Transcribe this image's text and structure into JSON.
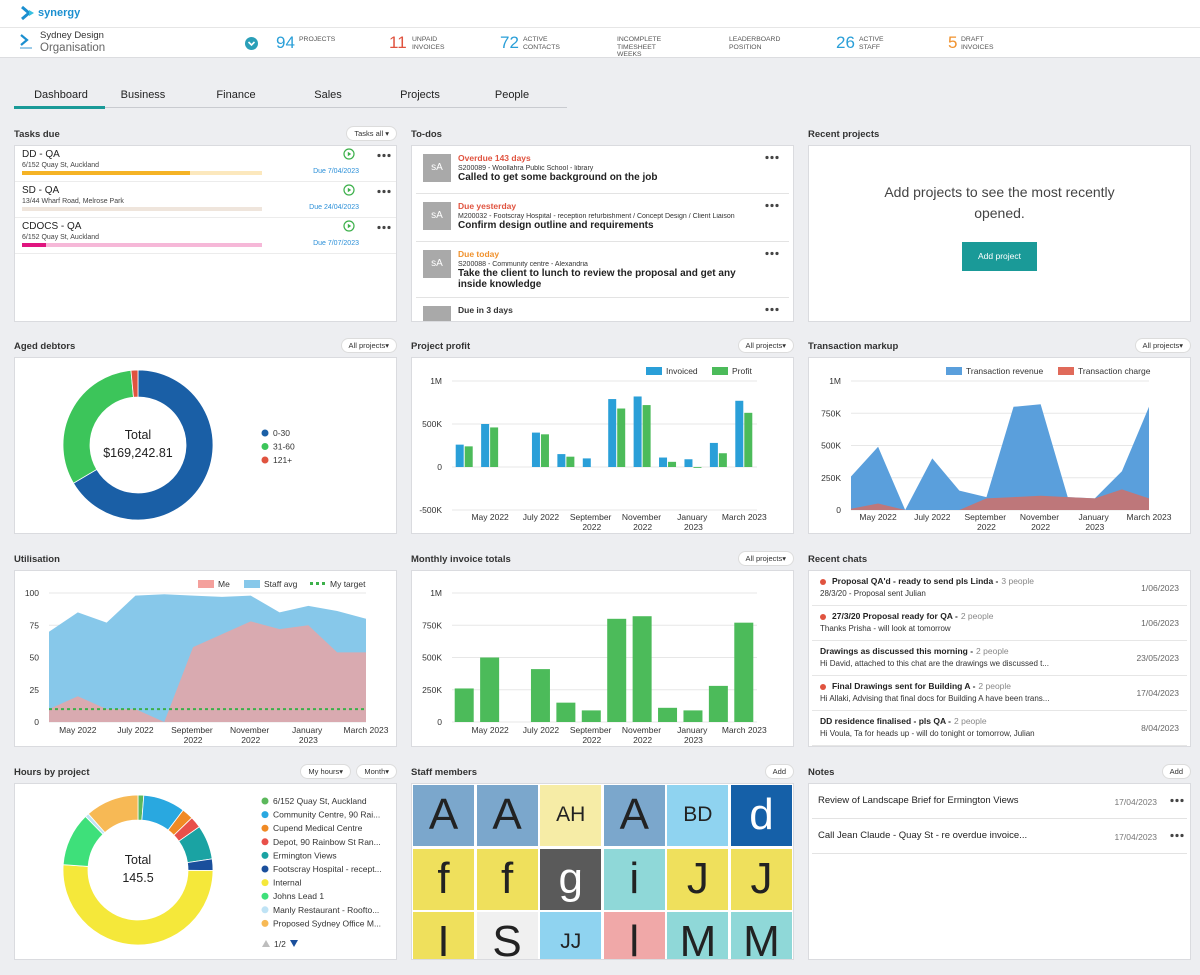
{
  "app": {
    "logo": "synergy"
  },
  "org": {
    "name": "Sydney Design",
    "type": "Organisation"
  },
  "stats": [
    {
      "value": 94,
      "label": "PROJECTS",
      "color": "#2a9fd8"
    },
    {
      "value": 11,
      "label": "UNPAID INVOICES",
      "color": "#e0533f"
    },
    {
      "value": 72,
      "label": "ACTIVE CONTACTS",
      "color": "#2a9fd8"
    },
    {
      "label": "INCOMPLETE TIMESHEET WEEKS"
    },
    {
      "label": "LEADERBOARD POSITION"
    },
    {
      "value": 26,
      "label": "ACTIVE STAFF",
      "color": "#2a9fd8"
    },
    {
      "value": 5,
      "label": "DRAFT INVOICES",
      "color": "#f0922e"
    }
  ],
  "tabs": {
    "items": [
      "Dashboard",
      "Business",
      "Finance",
      "Sales",
      "Projects",
      "People"
    ],
    "active": 0
  },
  "tasks_due": {
    "title": "Tasks due",
    "filter": "Tasks all ▾",
    "items": [
      {
        "name": "DD - QA",
        "address": "6/152 Quay St, Auckland",
        "due": "Due 7/04/2023",
        "progress": 70,
        "color": "#f5b325"
      },
      {
        "name": "SD - QA",
        "address": "13/44 Wharf Road, Melrose Park",
        "due": "Due 24/04/2023",
        "progress": 0,
        "color": "#c9a98a"
      },
      {
        "name": "CDOCS - QA",
        "address": "6/152 Quay St, Auckland",
        "due": "Due 7/07/2023",
        "progress": 10,
        "color": "#e0157f"
      }
    ]
  },
  "todos": {
    "title": "To-dos",
    "items": [
      {
        "avatar": "sA",
        "status": "Overdue 143 days",
        "status_color": "#e0533f",
        "ref": "S200089 - Woollahra Public School - library",
        "task": "Called to get some background on the job"
      },
      {
        "avatar": "sA",
        "status": "Due yesterday",
        "status_color": "#e0533f",
        "ref": "M200032 - Footscray Hospital - reception refurbishment / Concept Design / Client Liaison",
        "task": "Confirm design outline and requirements"
      },
      {
        "avatar": "sA",
        "status": "Due today",
        "status_color": "#f0922e",
        "ref": "S200088 - Community centre - Alexandria",
        "task": "Take the client to lunch to review the proposal and get any inside knowledge"
      },
      {
        "status": "Due in 3 days",
        "status_color": "#333333"
      }
    ]
  },
  "recent_projects": {
    "title": "Recent projects",
    "message": "Add projects to see the most recently opened.",
    "button": "Add project"
  },
  "aged_debtors": {
    "title": "Aged debtors",
    "filter": "All projects▾",
    "chart": {
      "type": "donut",
      "center_label": "Total",
      "center_value": "$169,242.81",
      "categories": [
        "0-30",
        "31-60",
        "121+"
      ],
      "values": [
        66.5,
        32,
        1.5
      ],
      "colors": [
        "#1a5fa6",
        "#3cc55a",
        "#e0533f"
      ]
    }
  },
  "project_profit": {
    "title": "Project profit",
    "filter": "All projects▾",
    "chart": {
      "type": "bar",
      "categories": [
        null,
        "May 2022",
        null,
        "July 2022",
        null,
        "September 2022",
        null,
        "November 2022",
        null,
        "January 2023",
        null,
        "March 2023"
      ],
      "series": [
        {
          "name": "Invoiced",
          "color": "#2a9fd8",
          "values": [
            260000,
            500000,
            0,
            400000,
            150000,
            100000,
            790000,
            820000,
            110000,
            90000,
            280000,
            770000
          ]
        },
        {
          "name": "Profit",
          "color": "#4cbb5a",
          "values": [
            240000,
            460000,
            0,
            380000,
            120000,
            0,
            680000,
            720000,
            60000,
            -10000,
            160000,
            630000
          ]
        }
      ],
      "ylim": [
        -500000,
        1000000
      ],
      "yticks": [
        {
          "value": -500000,
          "label": "-500K"
        },
        0,
        {
          "value": 500000,
          "label": "500K"
        },
        {
          "value": 1000000,
          "label": "1M"
        }
      ],
      "grid": true
    }
  },
  "transaction_markup": {
    "title": "Transaction markup",
    "filter": "All projects▾",
    "chart": {
      "type": "area",
      "categories": [
        null,
        "May 2022",
        null,
        "July 2022",
        null,
        "September 2022",
        null,
        "November 2022",
        null,
        "January 2023",
        null,
        "March 2023"
      ],
      "series": [
        {
          "name": "Transaction revenue",
          "color": "#5a9fdc",
          "values": [
            260000,
            490000,
            0,
            400000,
            150000,
            100000,
            800000,
            820000,
            100000,
            90000,
            300000,
            800000
          ]
        },
        {
          "name": "Transaction charge",
          "color": "#e06a5a",
          "values": [
            10000,
            50000,
            0,
            0,
            0,
            90000,
            100000,
            110000,
            100000,
            90000,
            160000,
            90000
          ]
        }
      ],
      "ylim": [
        0,
        1000000
      ],
      "yticks": [
        0,
        {
          "value": 250000,
          "label": "250K"
        },
        {
          "value": 500000,
          "label": "500K"
        },
        {
          "value": 750000,
          "label": "750K"
        },
        {
          "value": 1000000,
          "label": "1M"
        }
      ],
      "grid": true
    }
  },
  "utilisation": {
    "title": "Utilisation",
    "chart": {
      "type": "area",
      "categories": [
        null,
        "May 2022",
        null,
        "July 2022",
        null,
        "September 2022",
        null,
        "November 2022",
        null,
        "January 2023",
        null,
        "March 2023"
      ],
      "series": [
        {
          "name": "Me",
          "color": "#f4a09c",
          "values": [
            10,
            20,
            10,
            10,
            0,
            58,
            68,
            78,
            72,
            75,
            54,
            54
          ]
        },
        {
          "name": "Staff avg",
          "color": "#87c8ea",
          "values": [
            70,
            85,
            77,
            98,
            99,
            98,
            97,
            98,
            85,
            90,
            86,
            80
          ]
        },
        {
          "name": "My target",
          "color": "#3cb04a",
          "style": "dashed",
          "values": [
            10,
            10,
            10,
            10,
            10,
            10,
            10,
            10,
            10,
            10,
            10,
            10
          ]
        }
      ],
      "ylim": [
        0,
        100
      ],
      "yticks": [
        0,
        25,
        50,
        75,
        100
      ],
      "grid": true
    }
  },
  "monthly_invoice_totals": {
    "title": "Monthly invoice totals",
    "filter": "All projects▾",
    "chart": {
      "type": "bar",
      "categories": [
        null,
        "May 2022",
        null,
        "July 2022",
        null,
        "September 2022",
        null,
        "November 2022",
        null,
        "January 2023",
        null,
        "March 2023"
      ],
      "series": [
        {
          "name": "Invoice totals",
          "color": "#4cbb5a",
          "values": [
            260000,
            500000,
            0,
            410000,
            150000,
            90000,
            800000,
            820000,
            110000,
            90000,
            280000,
            770000
          ]
        }
      ],
      "ylim": [
        0,
        1000000
      ],
      "yticks": [
        0,
        {
          "value": 250000,
          "label": "250K"
        },
        {
          "value": 500000,
          "label": "500K"
        },
        {
          "value": 750000,
          "label": "750K"
        },
        {
          "value": 1000000,
          "label": "1M"
        }
      ],
      "grid": true
    }
  },
  "recent_chats": {
    "title": "Recent chats",
    "items": [
      {
        "title": "Proposal QA'd - ready to send pls Linda -",
        "participants": "3 people",
        "message": "28/3/20 - Proposal sent Julian",
        "date": "1/06/2023",
        "unread": true
      },
      {
        "title": "27/3/20 Proposal ready for QA -",
        "participants": "2 people",
        "message": "Thanks Prisha - will look at tomorrow",
        "date": "1/06/2023",
        "unread": true
      },
      {
        "title": "Drawings as discussed this morning -",
        "participants": "2 people",
        "message": "Hi David, attached to this chat are the drawings we discussed t...",
        "date": "23/05/2023",
        "unread": false
      },
      {
        "title": "Final Drawings sent for Building A -",
        "participants": "2 people",
        "message": "Hi Allaki, Advising that final docs for Building A have been trans...",
        "date": "17/04/2023",
        "unread": true
      },
      {
        "title": "DD residence finalised - pls QA -",
        "participants": "2 people",
        "message": "Hi Voula, Ta for heads up - will do tonight or tomorrow, Julian",
        "date": "8/04/2023",
        "unread": false
      }
    ]
  },
  "hours_by_project": {
    "title": "Hours by project",
    "filters": [
      "My hours▾",
      "Month▾"
    ],
    "pager": "1/2",
    "chart": {
      "type": "donut",
      "center_label": "Total",
      "center_value": 145.5,
      "categories": [
        "6/152 Quay St, Auckland",
        "Community Centre, 90 Rai...",
        "Cupend Medical Centre",
        "Depot, 90 Rainbow St Ran...",
        "Ermington Views",
        "Footscray Hospital - recept...",
        "Internal",
        "Johns Lead 1",
        "Manly Restaurant - Roofto...",
        "Proposed Sydney Office M..."
      ],
      "values": [
        1.5,
        11,
        3,
        3,
        9,
        3,
        62,
        14,
        1,
        14
      ],
      "colors": [
        "#5cb85c",
        "#29a8e0",
        "#f08a24",
        "#e8504a",
        "#1aa3a3",
        "#1a4f9c",
        "#f5e83a",
        "#3ee07a",
        "#bfe3f5",
        "#f7b955"
      ]
    }
  },
  "staff_members": {
    "title": "Staff members",
    "button": "Add",
    "tiles": [
      {
        "initials": "A",
        "color": "#7ba7cc"
      },
      {
        "initials": "A",
        "color": "#7ba7cc"
      },
      {
        "initials": "AH",
        "color": "#f6eca6"
      },
      {
        "initials": "A",
        "color": "#7ba7cc"
      },
      {
        "initials": "BD",
        "color": "#8fd3f0"
      },
      {
        "initials": "d",
        "color": "#1560a8",
        "text_color": "#ffffff"
      },
      {
        "initials": "f",
        "color": "#efe05c"
      },
      {
        "initials": "f",
        "color": "#efe05c"
      },
      {
        "initials": "g",
        "color": "#5a5a5a",
        "text_color": "#ffffff"
      },
      {
        "initials": "i",
        "color": "#8fd8d8"
      },
      {
        "initials": "J",
        "color": "#efe05c"
      },
      {
        "initials": "J",
        "color": "#efe05c"
      },
      {
        "initials": "I",
        "color": "#efe05c"
      },
      {
        "initials": "S",
        "color": "#f0f0f0"
      },
      {
        "initials": "JJ",
        "color": "#8fd3f0"
      },
      {
        "initials": "l",
        "color": "#f0a8a8"
      },
      {
        "initials": "M",
        "color": "#8fd8d8"
      },
      {
        "initials": "M",
        "color": "#8fd8d8"
      }
    ]
  },
  "notes": {
    "title": "Notes",
    "button": "Add",
    "items": [
      {
        "text": "Review of Landscape Brief for Ermington Views",
        "date": "17/04/2023"
      },
      {
        "text": "Call Jean Claude - Quay St - re overdue invoice...",
        "date": "17/04/2023"
      }
    ]
  }
}
